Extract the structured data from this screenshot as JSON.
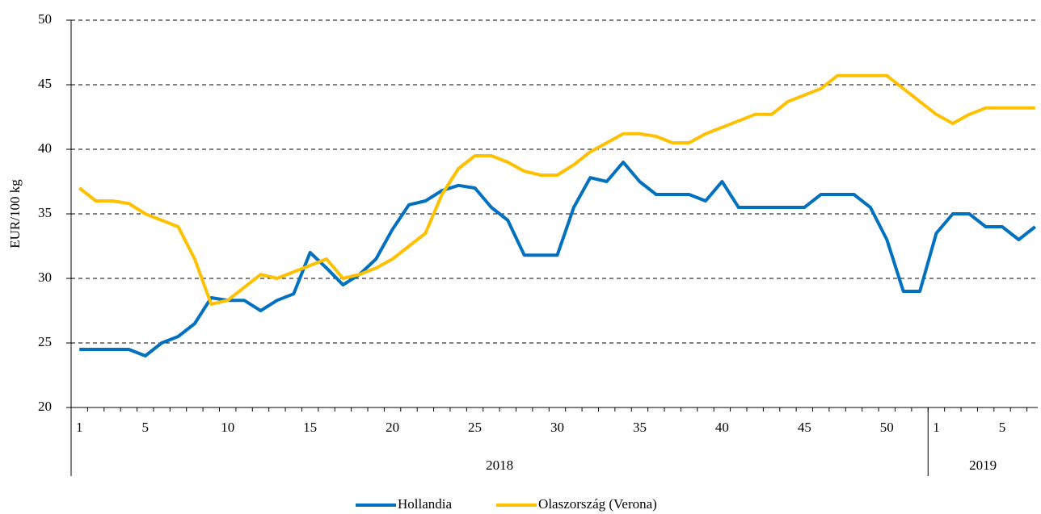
{
  "chart_data": {
    "type": "line",
    "ylabel": "EUR/100 kg",
    "groups": [
      {
        "label": "2018",
        "categories": [
          "1",
          null,
          null,
          null,
          "5",
          null,
          null,
          null,
          null,
          "10",
          null,
          null,
          null,
          null,
          "15",
          null,
          null,
          null,
          null,
          "20",
          null,
          null,
          null,
          null,
          "25",
          null,
          null,
          null,
          null,
          "30",
          null,
          null,
          null,
          null,
          "35",
          null,
          null,
          null,
          null,
          "40",
          null,
          null,
          null,
          null,
          "45",
          null,
          null,
          null,
          null,
          "50",
          null,
          null
        ]
      },
      {
        "label": "2019",
        "categories": [
          "1",
          null,
          null,
          null,
          "5",
          null,
          null
        ]
      }
    ],
    "series": [
      {
        "name": "Hollandia",
        "color": "#0070c0",
        "values": [
          24.5,
          24.5,
          24.5,
          24.5,
          24.0,
          25.0,
          25.5,
          26.5,
          28.5,
          28.3,
          28.3,
          27.5,
          28.3,
          28.8,
          32.0,
          30.8,
          29.5,
          30.3,
          31.5,
          33.8,
          35.7,
          36.0,
          36.8,
          37.2,
          37.0,
          35.5,
          34.5,
          31.8,
          31.8,
          31.8,
          35.5,
          37.8,
          37.5,
          39.0,
          37.5,
          36.5,
          36.5,
          36.5,
          36.0,
          37.5,
          35.5,
          35.5,
          35.5,
          35.5,
          35.5,
          36.5,
          36.5,
          36.5,
          35.5,
          33.0,
          29.0,
          29.0,
          33.5,
          35.0,
          35.0,
          34.0,
          34.0,
          33.0,
          34.0
        ]
      },
      {
        "name": "Olaszország (Verona)",
        "color": "#ffc000",
        "values": [
          37.0,
          36.0,
          36.0,
          35.8,
          35.0,
          34.5,
          34.0,
          31.5,
          28.0,
          28.3,
          29.3,
          30.3,
          30.0,
          30.5,
          31.0,
          31.5,
          30.0,
          30.3,
          30.8,
          31.5,
          32.5,
          33.5,
          36.5,
          38.5,
          39.5,
          39.5,
          39.0,
          38.3,
          38.0,
          38.0,
          38.8,
          39.8,
          40.5,
          41.2,
          41.2,
          41.0,
          40.5,
          40.5,
          41.2,
          41.7,
          42.2,
          42.7,
          42.7,
          43.7,
          44.2,
          44.7,
          45.7,
          45.7,
          45.7,
          45.7,
          44.7,
          43.7,
          42.7,
          42.0,
          42.7,
          43.2,
          43.2,
          43.2,
          43.2
        ]
      }
    ],
    "ylim": [
      20,
      50
    ],
    "yticks": [
      20,
      25,
      30,
      35,
      40,
      45,
      50
    ],
    "grid": true,
    "legend": "bottom"
  }
}
